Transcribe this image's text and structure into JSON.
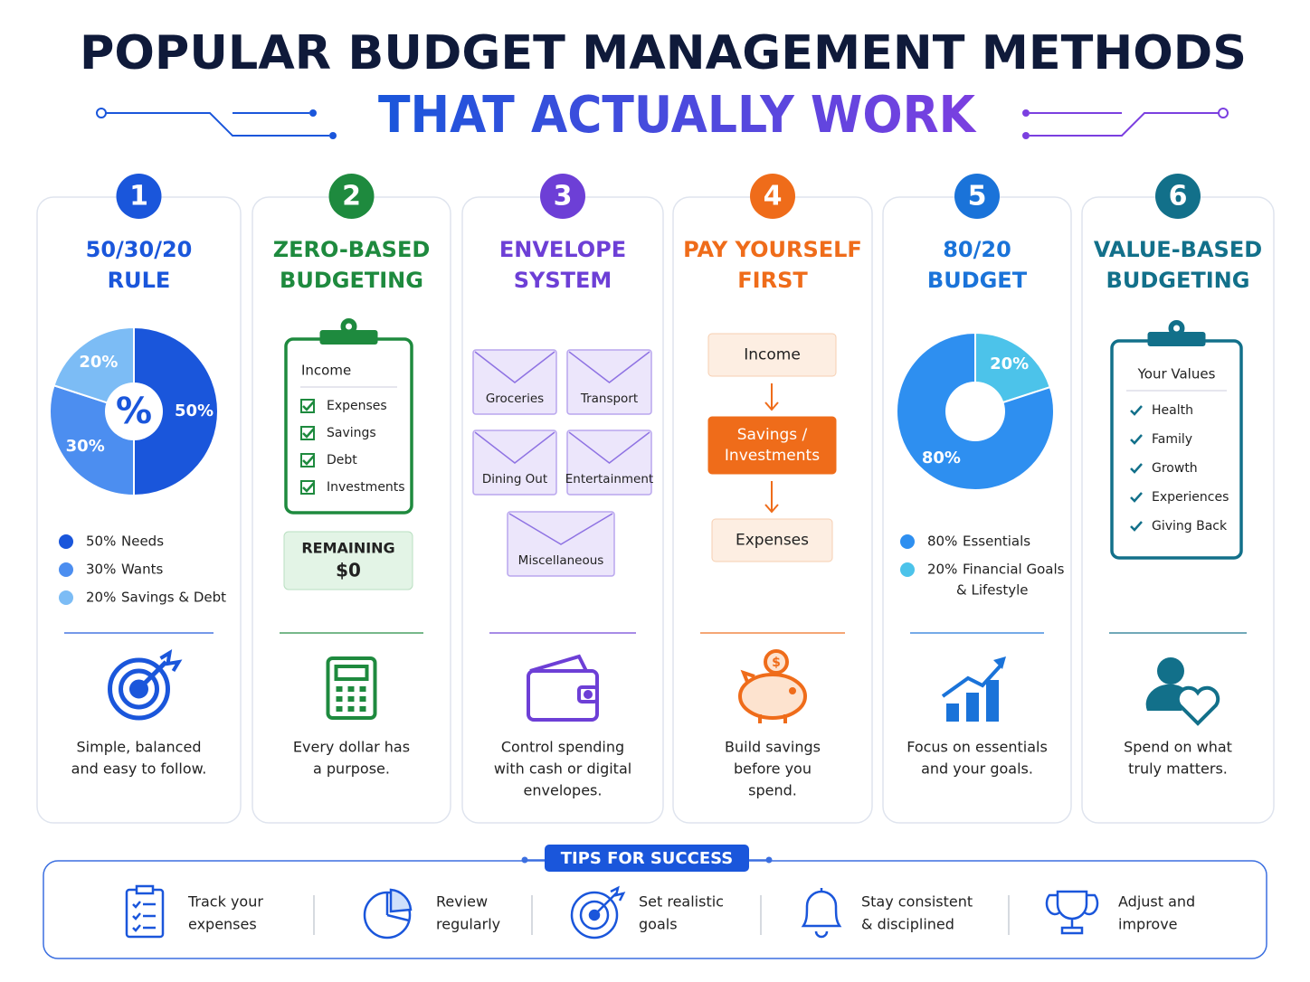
{
  "header": {
    "title": "POPULAR BUDGET MANAGEMENT METHODS",
    "subtitle": "THAT ACTUALLY WORK"
  },
  "methods": [
    {
      "number": "1",
      "title": [
        "50/30/20",
        "RULE"
      ],
      "color": "#1a56db",
      "pie": {
        "center_label": "%",
        "values": [
          50,
          30,
          20
        ],
        "value_labels": [
          "50%",
          "30%",
          "20%"
        ],
        "colors": [
          "#1a56db",
          "#4c8ef0",
          "#7cbcf5"
        ],
        "legend": [
          [
            "Needs"
          ],
          [
            "Wants"
          ],
          [
            "Savings & Debt"
          ]
        ]
      },
      "description": [
        "Simple, balanced",
        "and easy to follow."
      ]
    },
    {
      "number": "2",
      "title": [
        "ZERO-BASED",
        "BUDGETING"
      ],
      "color": "#1e8a3e",
      "clipboard": {
        "heading": "Income",
        "items": [
          "Expenses",
          "Savings",
          "Debt",
          "Investments"
        ]
      },
      "remaining": {
        "label": "REMAINING",
        "amount": "$0"
      },
      "description": [
        "Every dollar has",
        "a purpose."
      ]
    },
    {
      "number": "3",
      "title": [
        "ENVELOPE",
        "SYSTEM"
      ],
      "color": "#6d3fd6",
      "envelopes": [
        "Groceries",
        "Transport",
        "Dining Out",
        "Entertainment",
        "Miscellaneous"
      ],
      "description": [
        "Control spending",
        "with cash or digital",
        "envelopes."
      ]
    },
    {
      "number": "4",
      "title": [
        "PAY YOURSELF",
        "FIRST"
      ],
      "color": "#ef6c1a",
      "flow": [
        [
          "Income"
        ],
        [
          "Savings /",
          "Investments"
        ],
        [
          "Expenses"
        ]
      ],
      "description": [
        "Build savings",
        "before you",
        "spend."
      ]
    },
    {
      "number": "5",
      "title": [
        "80/20",
        "BUDGET"
      ],
      "color": "#1a73d9",
      "pie": {
        "values": [
          20,
          80
        ],
        "value_labels": [
          "20%",
          "80%"
        ],
        "colors": [
          "#4cc3ea",
          "#2e8ff0"
        ],
        "legend": [
          [
            "Financial Goals",
            "& Lifestyle"
          ],
          [
            "Essentials"
          ]
        ]
      },
      "description": [
        "Focus on essentials",
        "and your goals."
      ]
    },
    {
      "number": "6",
      "title": [
        "VALUE-BASED",
        "BUDGETING"
      ],
      "color": "#12708a",
      "clipboard": {
        "heading": "Your Values",
        "items": [
          "Health",
          "Family",
          "Growth",
          "Experiences",
          "Giving Back"
        ]
      },
      "description": [
        "Spend on what",
        "truly matters."
      ]
    }
  ],
  "tips": {
    "label": "TIPS FOR SUCCESS",
    "items": [
      [
        "Track your",
        "expenses"
      ],
      [
        "Review",
        "regularly"
      ],
      [
        "Set realistic",
        "goals"
      ],
      [
        "Stay consistent",
        "& disciplined"
      ],
      [
        "Adjust and",
        "improve"
      ]
    ]
  }
}
